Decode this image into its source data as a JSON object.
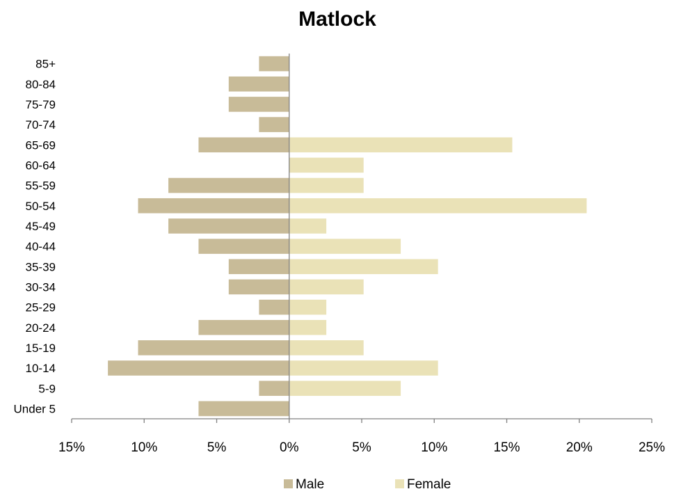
{
  "chart_data": {
    "type": "bar",
    "orientation": "horizontal",
    "layout": "population-pyramid",
    "title": "Matlock",
    "categories": [
      "Under 5",
      "5-9",
      "10-14",
      "15-19",
      "20-24",
      "25-29",
      "30-34",
      "35-39",
      "40-44",
      "45-49",
      "50-54",
      "55-59",
      "60-64",
      "65-69",
      "70-74",
      "75-79",
      "80-84",
      "85+"
    ],
    "series": [
      {
        "name": "Male",
        "color": "#c8bb98",
        "values": [
          -6.25,
          -2.08,
          -12.5,
          -10.42,
          -6.25,
          -2.08,
          -4.17,
          -4.17,
          -6.25,
          -8.33,
          -10.42,
          -8.33,
          0,
          -6.25,
          -2.08,
          -4.17,
          -4.17,
          -2.08
        ]
      },
      {
        "name": "Female",
        "color": "#eae2b7",
        "values": [
          0,
          7.69,
          10.26,
          5.13,
          2.56,
          2.56,
          5.13,
          10.26,
          7.69,
          2.56,
          20.51,
          5.13,
          5.13,
          15.38,
          0,
          0,
          0,
          0
        ]
      }
    ],
    "xlim": [
      -15,
      25
    ],
    "xticks": [
      -15,
      -10,
      -5,
      0,
      5,
      10,
      15,
      20,
      25
    ],
    "xtick_labels": [
      "15%",
      "10%",
      "5%",
      "0%",
      "5%",
      "10%",
      "15%",
      "20%",
      "25%"
    ],
    "grid": false,
    "legend_position": "bottom"
  }
}
